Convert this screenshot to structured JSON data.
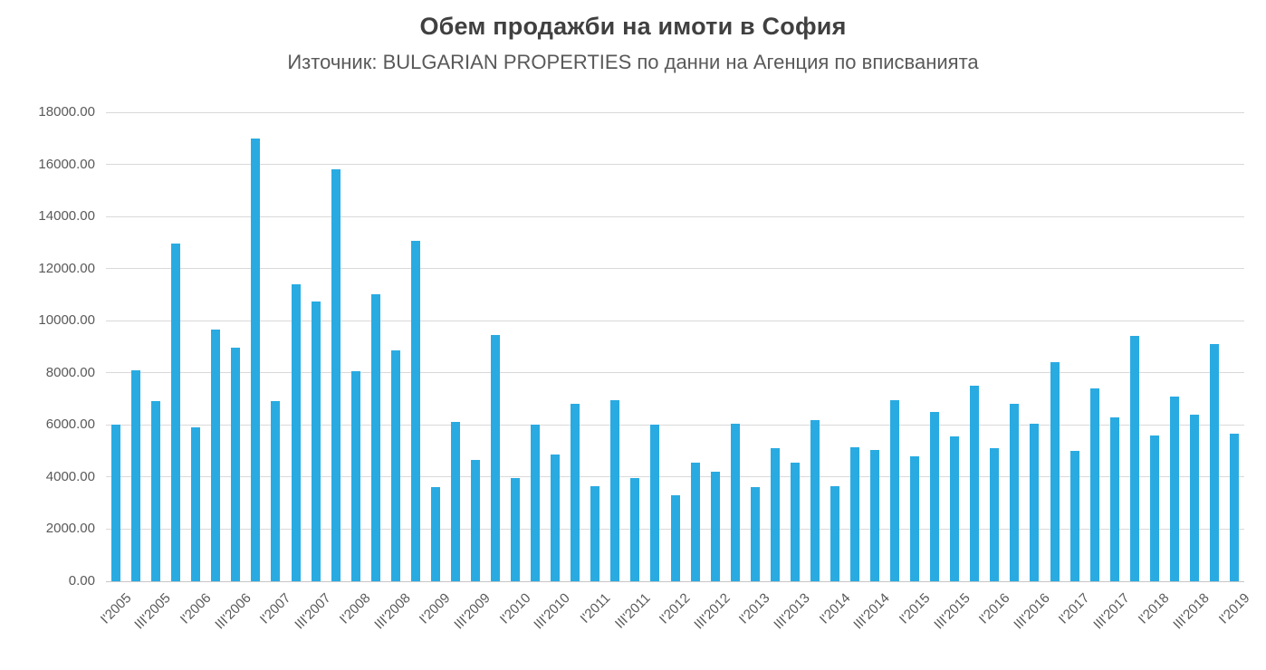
{
  "page": {
    "title": "Обем продажби на имоти в София",
    "subtitle": "Източник: BULGARIAN PROPERTIES по данни на Агенция по вписванията"
  },
  "chart_data": {
    "type": "bar",
    "title": "Обем продажби на имоти в София",
    "subtitle": "Източник: BULGARIAN PROPERTIES по данни на Агенция по вписванията",
    "xlabel": "",
    "ylabel": "",
    "grid": true,
    "legend": "none",
    "y_axis": {
      "min": 0,
      "max": 18000,
      "step": 2000
    },
    "y_tick_labels": [
      "0.00",
      "2000.00",
      "4000.00",
      "6000.00",
      "8000.00",
      "10000.00",
      "12000.00",
      "14000.00",
      "16000.00",
      "18000.00"
    ],
    "x_tick_every": 2,
    "x_tick_labels": [
      "I'2005",
      "III'2005",
      "I'2006",
      "III'2006",
      "I'2007",
      "III'2007",
      "I'2008",
      "III'2008",
      "I'2009",
      "III'2009",
      "I'2010",
      "III'2010",
      "I'2011",
      "III'2011",
      "I'2012",
      "III'2012",
      "I'2013",
      "III'2013",
      "I'2014",
      "III'2014",
      "I'2015",
      "III'2015",
      "I'2016",
      "III'2016",
      "I'2017",
      "III'2017",
      "I'2018",
      "III'2018",
      "I'2019"
    ],
    "categories": [
      "I'2005",
      "II'2005",
      "III'2005",
      "IV'2005",
      "I'2006",
      "II'2006",
      "III'2006",
      "IV'2006",
      "I'2007",
      "II'2007",
      "III'2007",
      "IV'2007",
      "I'2008",
      "II'2008",
      "III'2008",
      "IV'2008",
      "I'2009",
      "II'2009",
      "III'2009",
      "IV'2009",
      "I'2010",
      "II'2010",
      "III'2010",
      "IV'2010",
      "I'2011",
      "II'2011",
      "III'2011",
      "IV'2011",
      "I'2012",
      "II'2012",
      "III'2012",
      "IV'2012",
      "I'2013",
      "II'2013",
      "III'2013",
      "IV'2013",
      "I'2014",
      "II'2014",
      "III'2014",
      "IV'2014",
      "I'2015",
      "II'2015",
      "III'2015",
      "IV'2015",
      "I'2016",
      "II'2016",
      "III'2016",
      "IV'2016",
      "I'2017",
      "II'2017",
      "III'2017",
      "IV'2017",
      "I'2018",
      "II'2018",
      "III'2018",
      "IV'2018",
      "I'2019"
    ],
    "values": [
      6000,
      8100,
      6900,
      12950,
      5900,
      9650,
      8950,
      17000,
      6900,
      11400,
      10750,
      15800,
      8050,
      11000,
      8850,
      13050,
      3600,
      6100,
      4650,
      9450,
      3950,
      6000,
      4850,
      6800,
      3650,
      6950,
      3950,
      6000,
      3300,
      4550,
      4200,
      6050,
      3600,
      5100,
      4550,
      6200,
      3650,
      5150,
      5050,
      6950,
      4800,
      6500,
      5550,
      7500,
      5100,
      6800,
      6050,
      8400,
      5000,
      7400,
      6300,
      9400,
      5600,
      7100,
      6400,
      9100,
      5650
    ],
    "colors": {
      "bar": "#29ABE2",
      "gridline": "#d9d9d9",
      "axis_line": "#c6c6c6",
      "title_text": "#404040",
      "axis_text": "#595959",
      "background": "#ffffff"
    }
  }
}
